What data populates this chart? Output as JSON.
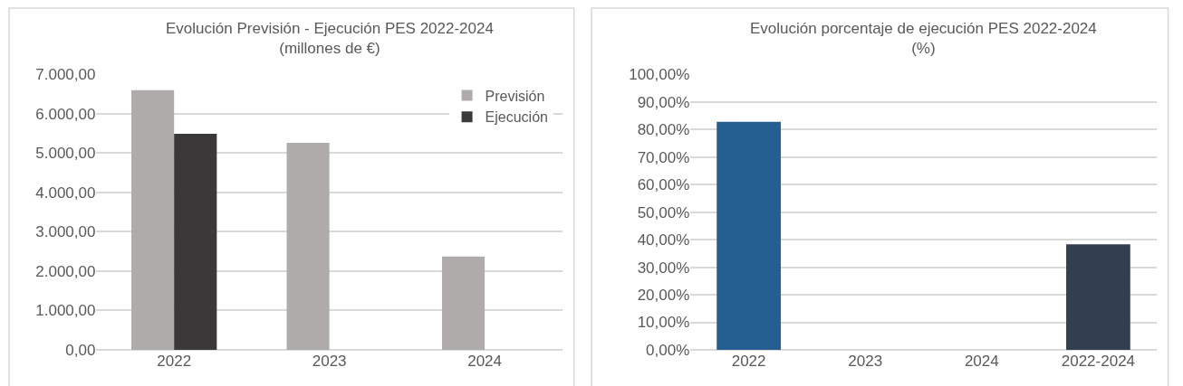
{
  "chart_data": [
    {
      "type": "bar",
      "title": "Evolución Previsión - Ejecución PES 2022-2024\n(millones de €)",
      "categories": [
        "2022",
        "2023",
        "2024"
      ],
      "series": [
        {
          "name": "Previsión",
          "color": "#afabab",
          "values": [
            6600,
            5260,
            2370
          ]
        },
        {
          "name": "Ejecución",
          "color": "#3a3838",
          "values": [
            5490,
            null,
            null
          ]
        }
      ],
      "ylim": [
        0,
        7000
      ],
      "yticks": [
        {
          "value": 0,
          "label": "0,00"
        },
        {
          "value": 1000,
          "label": "1.000,00"
        },
        {
          "value": 2000,
          "label": "2.000,00"
        },
        {
          "value": 3000,
          "label": "3.000,00"
        },
        {
          "value": 4000,
          "label": "4.000,00"
        },
        {
          "value": 5000,
          "label": "5.000,00"
        },
        {
          "value": 6000,
          "label": "6.000,00"
        },
        {
          "value": 7000,
          "label": "7.000,00"
        }
      ],
      "grid": "y",
      "legend": "top right"
    },
    {
      "type": "bar",
      "title": "Evolución porcentaje de ejecución PES 2022-2024\n(%)",
      "categories": [
        "2022",
        "2023",
        "2024",
        "2022-2024"
      ],
      "values": [
        82.8,
        null,
        null,
        38.3
      ],
      "colors": [
        "#255e91",
        "#255e91",
        "#255e91",
        "#333f50"
      ],
      "ylim": [
        0,
        100
      ],
      "yticks": [
        {
          "value": 0,
          "label": "0,00%"
        },
        {
          "value": 10,
          "label": "10,00%"
        },
        {
          "value": 20,
          "label": "20,00%"
        },
        {
          "value": 30,
          "label": "30,00%"
        },
        {
          "value": 40,
          "label": "40,00%"
        },
        {
          "value": 50,
          "label": "50,00%"
        },
        {
          "value": 60,
          "label": "60,00%"
        },
        {
          "value": 70,
          "label": "70,00%"
        },
        {
          "value": 80,
          "label": "80,00%"
        },
        {
          "value": 90,
          "label": "90,00%"
        },
        {
          "value": 100,
          "label": "100,00%"
        }
      ],
      "grid": "y"
    }
  ]
}
